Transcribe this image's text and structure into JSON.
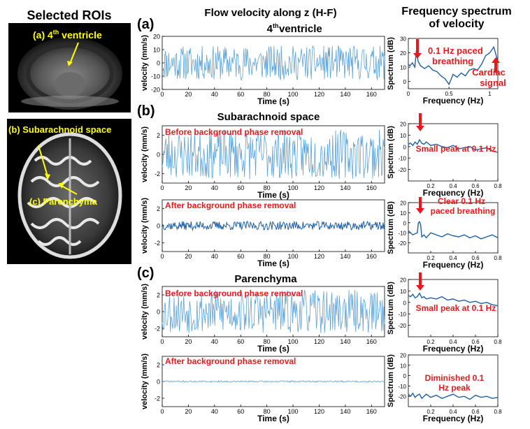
{
  "headers": {
    "left": "Selected ROIs",
    "middle": "Flow velocity along z (H-F)",
    "right_line1": "Frequency spectrum",
    "right_line2": "of velocity"
  },
  "panel_letters": {
    "a": "(a)",
    "b": "(b)",
    "c": "(c)"
  },
  "rois": {
    "top_label_prefix": "(a) 4",
    "top_label_sup": "th",
    "top_label_suffix": " ventricle",
    "bottom_label_subarachnoid": "(b) Subarachnoid space",
    "bottom_label_parenchyma": "(c) Parenchyma",
    "label_color": "#ffff00"
  },
  "colors": {
    "light_series": "#5aa2d8",
    "dark_series": "#1f5fa3",
    "annotation": "#e8191c"
  },
  "chart_data": [
    {
      "id": "ts_a",
      "type": "line",
      "title_line1": "4",
      "title_sup": "th",
      "title_line2": " ventricle",
      "xlabel": "Time (s)",
      "ylabel": "velocity (mm/s)",
      "xlim": [
        0,
        170
      ],
      "ylim": [
        -20,
        20
      ],
      "xticks": [
        0,
        20,
        40,
        60,
        80,
        100,
        120,
        140,
        160
      ],
      "yticks": [
        -20,
        -10,
        0,
        10,
        20
      ],
      "series": [
        {
          "style": "light",
          "amplitude": 13,
          "offset": 0,
          "seed": 11,
          "n": 340
        }
      ]
    },
    {
      "id": "sp_a",
      "type": "line",
      "xlabel": "Frequency (Hz)",
      "ylabel": "Spectrum (dB)",
      "xlim": [
        0,
        1.1
      ],
      "ylim": [
        -5,
        30
      ],
      "xticks": [
        0,
        0.5,
        1
      ],
      "xtick_labels": [
        "0",
        "0.5",
        "1"
      ],
      "yticks": [
        0,
        10,
        20,
        30
      ],
      "series": [
        {
          "style": "dark",
          "x": [
            0,
            0.02,
            0.05,
            0.08,
            0.1,
            0.12,
            0.15,
            0.2,
            0.25,
            0.3,
            0.35,
            0.4,
            0.45,
            0.5,
            0.55,
            0.6,
            0.65,
            0.7,
            0.75,
            0.8,
            0.85,
            0.9,
            0.95,
            1.0,
            1.05,
            1.08,
            1.1
          ],
          "y": [
            12,
            11,
            13,
            10,
            22,
            14,
            11,
            9,
            11,
            8,
            7,
            4,
            2,
            -2,
            5,
            3,
            6,
            4,
            8,
            9,
            8,
            12,
            18,
            20,
            24,
            18,
            14
          ]
        }
      ],
      "annotations": [
        "0.1 Hz paced",
        "breathing",
        "Cardiac",
        "signal"
      ]
    },
    {
      "id": "ts_b1",
      "type": "line",
      "title": "Subarachnoid space",
      "xlabel": "Time (s)",
      "ylabel": "velocity (mm/s)",
      "xlim": [
        0,
        170
      ],
      "ylim": [
        -3,
        3
      ],
      "xticks": [
        0,
        20,
        40,
        60,
        80,
        100,
        120,
        140,
        160
      ],
      "yticks": [
        -2,
        0,
        2
      ],
      "series": [
        {
          "style": "light",
          "amplitude": 2.6,
          "offset": 0,
          "seed": 23,
          "n": 300
        }
      ],
      "annotations": [
        "Before background phase removal"
      ]
    },
    {
      "id": "sp_b1",
      "type": "line",
      "xlabel": "Frequency (Hz)",
      "ylabel": "Spectrum (dB)",
      "xlim": [
        0,
        0.8
      ],
      "ylim": [
        -30,
        20
      ],
      "xticks": [
        0.2,
        0.4,
        0.6,
        0.8
      ],
      "yticks": [
        -20,
        -10,
        0,
        10,
        20
      ],
      "series": [
        {
          "style": "dark",
          "x": [
            0,
            0.02,
            0.04,
            0.06,
            0.08,
            0.1,
            0.12,
            0.14,
            0.16,
            0.2,
            0.25,
            0.3,
            0.35,
            0.4,
            0.45,
            0.5,
            0.55,
            0.6,
            0.65,
            0.7,
            0.75,
            0.8
          ],
          "y": [
            2,
            3,
            1,
            4,
            2,
            6,
            3,
            2,
            4,
            1,
            2,
            0,
            -1,
            1,
            -2,
            -1,
            0,
            -3,
            -2,
            -1,
            -4,
            -5
          ]
        }
      ],
      "annotations": [
        "Small peak at 0.1 Hz"
      ]
    },
    {
      "id": "ts_b2",
      "type": "line",
      "xlabel": "Time (s)",
      "ylabel": "velocity (mm/s)",
      "xlim": [
        0,
        170
      ],
      "ylim": [
        -3,
        3
      ],
      "xticks": [
        0,
        20,
        40,
        60,
        80,
        100,
        120,
        140,
        160
      ],
      "yticks": [
        -2,
        0,
        2
      ],
      "series": [
        {
          "style": "dark",
          "amplitude": 0.5,
          "offset": 0,
          "seed": 37,
          "n": 300
        }
      ],
      "annotations": [
        "After background phase removal"
      ]
    },
    {
      "id": "sp_b2",
      "type": "line",
      "xlabel": "Frequency (Hz)",
      "ylabel": "Spectrum (dB)",
      "xlim": [
        0,
        0.8
      ],
      "ylim": [
        -30,
        20
      ],
      "xticks": [
        0.2,
        0.4,
        0.6,
        0.8
      ],
      "yticks": [
        -20,
        -10,
        0,
        10,
        20
      ],
      "series": [
        {
          "style": "dark",
          "x": [
            0,
            0.02,
            0.04,
            0.06,
            0.08,
            0.09,
            0.1,
            0.11,
            0.12,
            0.14,
            0.16,
            0.2,
            0.25,
            0.3,
            0.35,
            0.4,
            0.45,
            0.5,
            0.55,
            0.6,
            0.65,
            0.7,
            0.75,
            0.8
          ],
          "y": [
            -8,
            -10,
            -12,
            -11,
            -10,
            0,
            1,
            -2,
            -14,
            -12,
            -15,
            -10,
            -12,
            -14,
            -11,
            -13,
            -14,
            -12,
            -15,
            -13,
            -16,
            -14,
            -12,
            -15
          ]
        }
      ],
      "annotations": [
        "Clear 0.1 Hz",
        "paced breathing"
      ]
    },
    {
      "id": "ts_c1",
      "type": "line",
      "title": "Parenchyma",
      "xlabel": "Time (s)",
      "ylabel": "velocity (mm/s)",
      "xlim": [
        0,
        170
      ],
      "ylim": [
        -3,
        3
      ],
      "xticks": [
        0,
        20,
        40,
        60,
        80,
        100,
        120,
        140,
        160
      ],
      "yticks": [
        -2,
        0,
        2
      ],
      "series": [
        {
          "style": "light",
          "amplitude": 2.6,
          "offset": 0,
          "seed": 53,
          "n": 300
        }
      ],
      "annotations": [
        "Before background phase removal"
      ]
    },
    {
      "id": "sp_c1",
      "type": "line",
      "xlabel": "Frequency (Hz)",
      "ylabel": "Spectrum (dB)",
      "xlim": [
        0,
        0.8
      ],
      "ylim": [
        -30,
        20
      ],
      "xticks": [
        0.2,
        0.4,
        0.6,
        0.8
      ],
      "yticks": [
        -20,
        -10,
        0,
        10,
        20
      ],
      "series": [
        {
          "style": "dark",
          "x": [
            0,
            0.02,
            0.04,
            0.06,
            0.08,
            0.1,
            0.12,
            0.14,
            0.16,
            0.2,
            0.25,
            0.3,
            0.35,
            0.4,
            0.45,
            0.5,
            0.55,
            0.6,
            0.65,
            0.7,
            0.75,
            0.8
          ],
          "y": [
            6,
            5,
            7,
            4,
            5,
            8,
            4,
            5,
            3,
            4,
            3,
            5,
            2,
            3,
            1,
            2,
            0,
            1,
            -1,
            0,
            -2,
            -3
          ]
        }
      ],
      "annotations": [
        "Small peak at 0.1 Hz"
      ]
    },
    {
      "id": "ts_c2",
      "type": "line",
      "xlabel": "Time (s)",
      "ylabel": "velocity (mm/s)",
      "xlim": [
        0,
        170
      ],
      "ylim": [
        -3,
        3
      ],
      "xticks": [
        0,
        20,
        40,
        60,
        80,
        100,
        120,
        140,
        160
      ],
      "yticks": [
        -2,
        0,
        2
      ],
      "series": [
        {
          "style": "light",
          "amplitude": 0.1,
          "offset": 0,
          "seed": 71,
          "n": 300
        }
      ],
      "annotations": [
        "After background phase removal"
      ]
    },
    {
      "id": "sp_c2",
      "type": "line",
      "xlabel": "Frequency (Hz)",
      "ylabel": "Spectrum (dB)",
      "xlim": [
        0,
        0.8
      ],
      "ylim": [
        -30,
        20
      ],
      "xticks": [
        0.2,
        0.4,
        0.6,
        0.8
      ],
      "yticks": [
        -20,
        -10,
        0,
        10,
        20
      ],
      "series": [
        {
          "style": "dark",
          "x": [
            0,
            0.02,
            0.04,
            0.06,
            0.08,
            0.1,
            0.12,
            0.14,
            0.16,
            0.2,
            0.25,
            0.3,
            0.35,
            0.4,
            0.45,
            0.5,
            0.55,
            0.6,
            0.65,
            0.7,
            0.75,
            0.8
          ],
          "y": [
            -18,
            -20,
            -17,
            -21,
            -19,
            -18,
            -22,
            -20,
            -18,
            -21,
            -19,
            -22,
            -20,
            -18,
            -21,
            -20,
            -23,
            -19,
            -21,
            -20,
            -22,
            -21
          ]
        }
      ],
      "annotations": [
        "Diminished 0.1",
        "Hz peak"
      ]
    }
  ]
}
